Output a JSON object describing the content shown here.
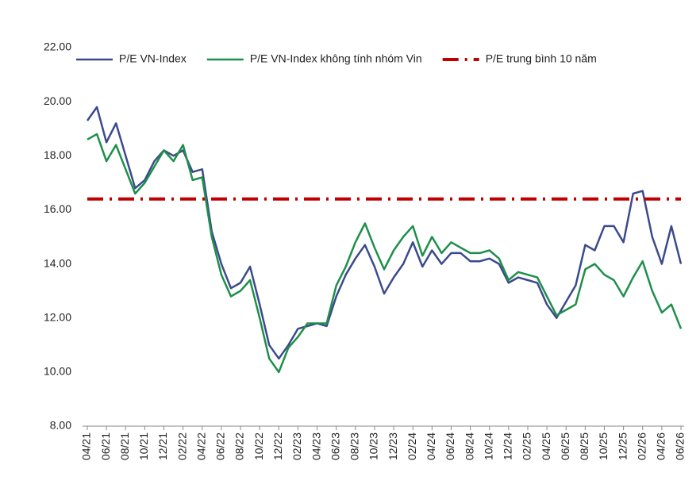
{
  "chart_data": {
    "type": "line",
    "categories": [
      "04/21",
      null,
      "06/21",
      null,
      "08/21",
      null,
      "10/21",
      null,
      "12/21",
      null,
      "02/22",
      null,
      "04/22",
      null,
      "06/22",
      null,
      "08/22",
      null,
      "10/22",
      null,
      "12/22",
      null,
      "02/23",
      null,
      "04/23",
      null,
      "06/23",
      null,
      "08/23",
      null,
      "10/23",
      null,
      "12/23",
      null,
      "02/24",
      null,
      "04/24",
      null,
      "06/24",
      null,
      "08/24",
      null,
      "10/24",
      null,
      "12/24",
      null,
      "02/25",
      null,
      "04/25",
      null,
      "06/25",
      null,
      "08/25",
      null,
      "10/25",
      null,
      "12/25",
      null,
      "02/26",
      null,
      "04/26",
      null,
      "06/26"
    ],
    "series": [
      {
        "name": "P/E VN-Index",
        "color": "#3b4a8c",
        "style": "solid",
        "values": [
          19.3,
          19.8,
          18.5,
          19.2,
          18.0,
          16.8,
          17.1,
          17.8,
          18.2,
          18.0,
          18.2,
          17.4,
          17.5,
          15.2,
          14.0,
          13.1,
          13.3,
          13.9,
          12.5,
          11.0,
          10.5,
          11.0,
          11.6,
          11.7,
          11.8,
          11.7,
          12.8,
          13.6,
          14.2,
          14.7,
          13.9,
          12.9,
          13.5,
          14.0,
          14.8,
          13.9,
          14.5,
          14.0,
          14.4,
          14.4,
          14.1,
          14.1,
          14.2,
          14.0,
          13.3,
          13.5,
          13.4,
          13.3,
          12.5,
          12.0,
          12.6,
          13.2,
          14.7,
          14.5,
          15.4,
          15.4,
          14.8,
          16.6,
          16.7,
          15.0,
          14.0,
          15.4,
          14.0
        ]
      },
      {
        "name": "P/E VN-Index không tính nhóm Vin",
        "color": "#1e8f4a",
        "style": "solid",
        "values": [
          18.6,
          18.8,
          17.8,
          18.4,
          17.5,
          16.6,
          17.0,
          17.6,
          18.2,
          17.8,
          18.4,
          17.1,
          17.2,
          15.0,
          13.6,
          12.8,
          13.0,
          13.4,
          12.0,
          10.5,
          10.0,
          10.9,
          11.3,
          11.8,
          11.8,
          11.8,
          13.2,
          13.9,
          14.8,
          15.5,
          14.6,
          13.8,
          14.5,
          15.0,
          15.4,
          14.3,
          15.0,
          14.4,
          14.8,
          14.6,
          14.4,
          14.4,
          14.5,
          14.2,
          13.4,
          13.7,
          13.6,
          13.5,
          12.8,
          12.1,
          12.3,
          12.5,
          13.8,
          14.0,
          13.6,
          13.4,
          12.8,
          13.5,
          14.1,
          13.0,
          12.2,
          12.5,
          11.6
        ]
      },
      {
        "name": "P/E trung bình 10 năm",
        "color": "#c00000",
        "style": "dashdot",
        "values": [
          16.4,
          16.4,
          16.4,
          16.4,
          16.4,
          16.4,
          16.4,
          16.4,
          16.4,
          16.4,
          16.4,
          16.4,
          16.4,
          16.4,
          16.4,
          16.4,
          16.4,
          16.4,
          16.4,
          16.4,
          16.4,
          16.4,
          16.4,
          16.4,
          16.4,
          16.4,
          16.4,
          16.4,
          16.4,
          16.4,
          16.4,
          16.4,
          16.4,
          16.4,
          16.4,
          16.4,
          16.4,
          16.4,
          16.4,
          16.4,
          16.4,
          16.4,
          16.4,
          16.4,
          16.4,
          16.4,
          16.4,
          16.4,
          16.4,
          16.4,
          16.4,
          16.4,
          16.4,
          16.4,
          16.4,
          16.4,
          16.4,
          16.4,
          16.4,
          16.4,
          16.4,
          16.4,
          16.4
        ]
      }
    ],
    "ylim": [
      8,
      22
    ],
    "yticks": [
      {
        "value": 8,
        "label": "8.00"
      },
      {
        "value": 10,
        "label": "10.00"
      },
      {
        "value": 12,
        "label": "12.00"
      },
      {
        "value": 14,
        "label": "14.00"
      },
      {
        "value": 16,
        "label": "16.00"
      },
      {
        "value": 18,
        "label": "18.00"
      },
      {
        "value": 20,
        "label": "20.00"
      },
      {
        "value": 22,
        "label": "22.00"
      }
    ],
    "grid": false,
    "legend": "top"
  }
}
